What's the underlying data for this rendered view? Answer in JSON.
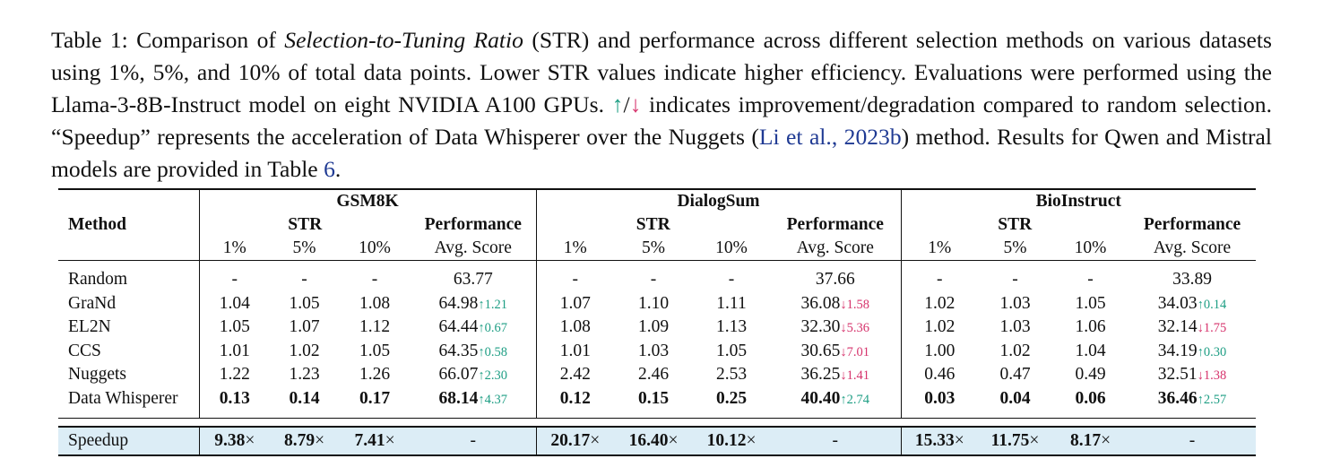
{
  "caption": {
    "label": "Table 1:",
    "t1": "Comparison of",
    "t2_italic": "Selection-to-Tuning Ratio",
    "t3": "(STR) and performance across different selection methods on various datasets using 1%, 5%, and 10% of total data points. Lower STR values indicate higher efficiency. Evaluations were performed using the Llama-3-8B-Instruct model on eight NVIDIA A100 GPUs.",
    "up_arrow": "↑",
    "slash": "/",
    "down_arrow": "↓",
    "t4": "indicates improvement/degradation compared to random selection. “Speedup” represents the acceleration of Data Whisperer over the Nuggets (",
    "cite_author": "Li et al.",
    "cite_sep": ",",
    "cite_year": "2023b",
    "t5": ") method. Results for Qwen and Mistral models are provided in Table",
    "table_ref": "6",
    "t6": "."
  },
  "header": {
    "method": "Method",
    "datasets": [
      "GSM8K",
      "DialogSum",
      "BioInstruct"
    ],
    "str": "STR",
    "performance": "Performance",
    "pcts": [
      "1%",
      "5%",
      "10%"
    ],
    "avg_score": "Avg. Score"
  },
  "rows": [
    {
      "method": "Random",
      "gsm": [
        "-",
        "-",
        "-"
      ],
      "gsm_perf": "63.77",
      "gsm_delta": "",
      "dia": [
        "-",
        "-",
        "-"
      ],
      "dia_perf": "37.66",
      "dia_delta": "",
      "bio": [
        "-",
        "-",
        "-"
      ],
      "bio_perf": "33.89",
      "bio_delta": ""
    },
    {
      "method": "GraNd",
      "gsm": [
        "1.04",
        "1.05",
        "1.08"
      ],
      "gsm_perf": "64.98",
      "gsm_delta": "↑1.21",
      "dia": [
        "1.07",
        "1.10",
        "1.11"
      ],
      "dia_perf": "36.08",
      "dia_delta": "↓1.58",
      "bio": [
        "1.02",
        "1.03",
        "1.05"
      ],
      "bio_perf": "34.03",
      "bio_delta": "↑0.14"
    },
    {
      "method": "EL2N",
      "gsm": [
        "1.05",
        "1.07",
        "1.12"
      ],
      "gsm_perf": "64.44",
      "gsm_delta": "↑0.67",
      "dia": [
        "1.08",
        "1.09",
        "1.13"
      ],
      "dia_perf": "32.30",
      "dia_delta": "↓5.36",
      "bio": [
        "1.02",
        "1.03",
        "1.06"
      ],
      "bio_perf": "32.14",
      "bio_delta": "↓1.75"
    },
    {
      "method": "CCS",
      "gsm": [
        "1.01",
        "1.02",
        "1.05"
      ],
      "gsm_perf": "64.35",
      "gsm_delta": "↑0.58",
      "dia": [
        "1.01",
        "1.03",
        "1.05"
      ],
      "dia_perf": "30.65",
      "dia_delta": "↓7.01",
      "bio": [
        "1.00",
        "1.02",
        "1.04"
      ],
      "bio_perf": "34.19",
      "bio_delta": "↑0.30"
    },
    {
      "method": "Nuggets",
      "gsm": [
        "1.22",
        "1.23",
        "1.26"
      ],
      "gsm_perf": "66.07",
      "gsm_delta": "↑2.30",
      "dia": [
        "2.42",
        "2.46",
        "2.53"
      ],
      "dia_perf": "36.25",
      "dia_delta": "↓1.41",
      "bio": [
        "0.46",
        "0.47",
        "0.49"
      ],
      "bio_perf": "32.51",
      "bio_delta": "↓1.38"
    },
    {
      "method": "Data Whisperer",
      "gsm": [
        "0.13",
        "0.14",
        "0.17"
      ],
      "gsm_perf": "68.14",
      "gsm_delta": "↑4.37",
      "dia": [
        "0.12",
        "0.15",
        "0.25"
      ],
      "dia_perf": "40.40",
      "dia_delta": "↑2.74",
      "bio": [
        "0.03",
        "0.04",
        "0.06"
      ],
      "bio_perf": "36.46",
      "bio_delta": "↑2.57"
    }
  ],
  "speedup": {
    "label": "Speedup",
    "times": "×",
    "gsm": [
      "9.38",
      "8.79",
      "7.41"
    ],
    "gsm_perf": "-",
    "dia": [
      "20.17",
      "16.40",
      "10.12"
    ],
    "dia_perf": "-",
    "bio": [
      "15.33",
      "11.75",
      "8.17"
    ],
    "bio_perf": "-"
  },
  "colors": {
    "improvement": "#1e9e84",
    "degradation": "#d6336c",
    "citation": "#1f3a93",
    "speedup_row": "#dcedf6"
  }
}
